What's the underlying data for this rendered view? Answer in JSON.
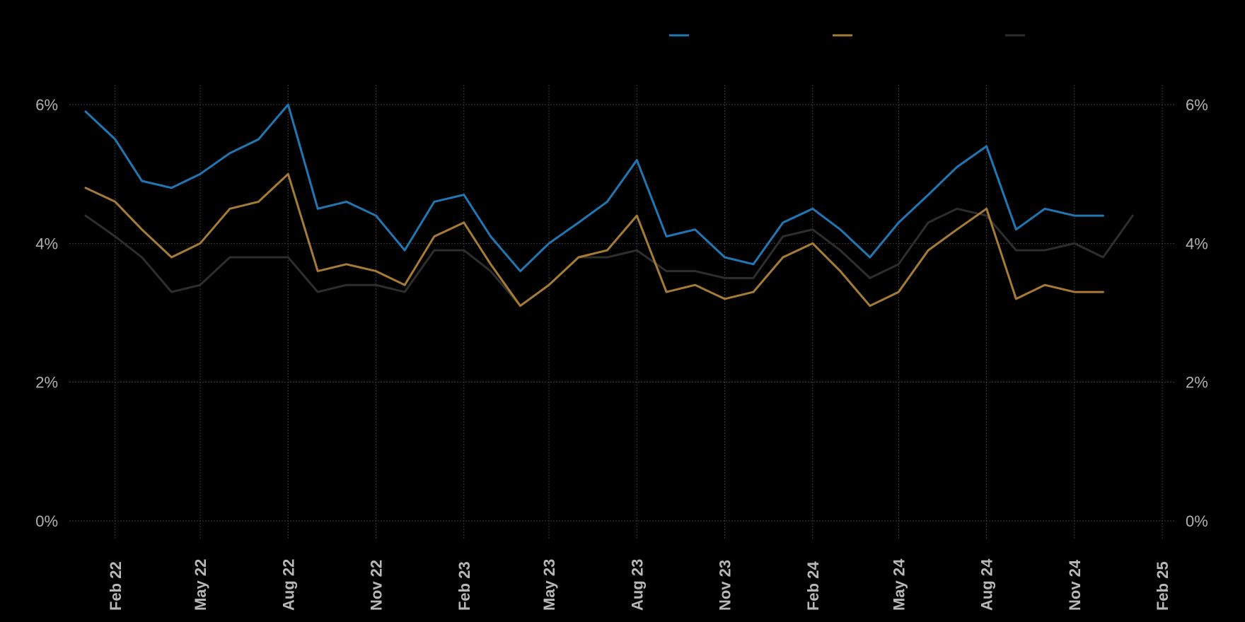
{
  "chart_data": {
    "type": "line",
    "title": "",
    "xlabel": "",
    "ylabel": "",
    "grid": true,
    "legend_position": "top-center",
    "y_unit": "%",
    "ylim": [
      0,
      6.2
    ],
    "y_ticks": [
      0,
      2,
      4,
      6
    ],
    "y_tick_labels": [
      "0%",
      "2%",
      "4%",
      "6%"
    ],
    "x_range": [
      "2021-12-15",
      "2025-02-15"
    ],
    "x_ticks": [
      "2022-02-01",
      "2022-05-01",
      "2022-08-01",
      "2022-11-01",
      "2023-02-01",
      "2023-05-01",
      "2023-08-01",
      "2023-11-01",
      "2024-02-01",
      "2024-05-01",
      "2024-08-01",
      "2024-11-01",
      "2025-02-01"
    ],
    "x_tick_labels": [
      "Feb 22",
      "May 22",
      "Aug 22",
      "Nov 22",
      "Feb 23",
      "May 23",
      "Aug 23",
      "Nov 23",
      "Feb 24",
      "May 24",
      "Aug 24",
      "Nov 24",
      "Feb 25"
    ],
    "series": [
      {
        "color": "#1f77b4",
        "x": [
          "2022-01-01",
          "2022-02-01",
          "2022-03-01",
          "2022-04-01",
          "2022-05-01",
          "2022-06-01",
          "2022-07-01",
          "2022-08-01",
          "2022-09-01",
          "2022-10-01",
          "2022-11-01",
          "2022-12-01",
          "2023-01-01",
          "2023-02-01",
          "2023-03-01",
          "2023-04-01",
          "2023-05-01",
          "2023-06-01",
          "2023-07-01",
          "2023-08-01",
          "2023-09-01",
          "2023-10-01",
          "2023-11-01",
          "2023-12-01",
          "2024-01-01",
          "2024-02-01",
          "2024-03-01",
          "2024-04-01",
          "2024-05-01",
          "2024-06-01",
          "2024-07-01",
          "2024-08-01",
          "2024-09-01",
          "2024-10-01",
          "2024-11-01",
          "2024-12-01"
        ],
        "values": [
          5.9,
          5.5,
          4.9,
          4.8,
          5.0,
          5.3,
          5.5,
          6.0,
          4.5,
          4.6,
          4.4,
          3.9,
          4.6,
          4.7,
          4.1,
          3.6,
          4.0,
          4.3,
          4.6,
          5.2,
          4.1,
          4.2,
          3.8,
          3.7,
          4.3,
          4.5,
          4.2,
          3.8,
          4.3,
          4.7,
          5.1,
          5.4,
          4.2,
          4.5,
          4.4,
          4.4
        ]
      },
      {
        "color": "#a67c35",
        "x": [
          "2022-01-01",
          "2022-02-01",
          "2022-03-01",
          "2022-04-01",
          "2022-05-01",
          "2022-06-01",
          "2022-07-01",
          "2022-08-01",
          "2022-09-01",
          "2022-10-01",
          "2022-11-01",
          "2022-12-01",
          "2023-01-01",
          "2023-02-01",
          "2023-03-01",
          "2023-04-01",
          "2023-05-01",
          "2023-06-01",
          "2023-07-01",
          "2023-08-01",
          "2023-09-01",
          "2023-10-01",
          "2023-11-01",
          "2023-12-01",
          "2024-01-01",
          "2024-02-01",
          "2024-03-01",
          "2024-04-01",
          "2024-05-01",
          "2024-06-01",
          "2024-07-01",
          "2024-08-01",
          "2024-09-01",
          "2024-10-01",
          "2024-11-01",
          "2024-12-01"
        ],
        "values": [
          4.8,
          4.6,
          4.2,
          3.8,
          4.0,
          4.5,
          4.6,
          5.0,
          3.6,
          3.7,
          3.6,
          3.4,
          4.1,
          4.3,
          3.7,
          3.1,
          3.4,
          3.8,
          3.9,
          4.4,
          3.3,
          3.4,
          3.2,
          3.3,
          3.8,
          4.0,
          3.6,
          3.1,
          3.3,
          3.9,
          4.2,
          4.5,
          3.2,
          3.4,
          3.3,
          3.3
        ]
      },
      {
        "color": "#2e2e2e",
        "x": [
          "2022-01-01",
          "2022-02-01",
          "2022-03-01",
          "2022-04-01",
          "2022-05-01",
          "2022-06-01",
          "2022-07-01",
          "2022-08-01",
          "2022-09-01",
          "2022-10-01",
          "2022-11-01",
          "2022-12-01",
          "2023-01-01",
          "2023-02-01",
          "2023-03-01",
          "2023-04-01",
          "2023-05-01",
          "2023-06-01",
          "2023-07-01",
          "2023-08-01",
          "2023-09-01",
          "2023-10-01",
          "2023-11-01",
          "2023-12-01",
          "2024-01-01",
          "2024-02-01",
          "2024-03-01",
          "2024-04-01",
          "2024-05-01",
          "2024-06-01",
          "2024-07-01",
          "2024-08-01",
          "2024-09-01",
          "2024-10-01",
          "2024-11-01",
          "2024-12-01",
          "2025-01-01"
        ],
        "values": [
          4.4,
          4.1,
          3.8,
          3.3,
          3.4,
          3.8,
          3.8,
          3.8,
          3.3,
          3.4,
          3.4,
          3.3,
          3.9,
          3.9,
          3.6,
          3.1,
          3.4,
          3.8,
          3.8,
          3.9,
          3.6,
          3.6,
          3.5,
          3.5,
          4.1,
          4.2,
          3.9,
          3.5,
          3.7,
          4.3,
          4.5,
          4.4,
          3.9,
          3.9,
          4.0,
          3.8,
          4.4
        ]
      }
    ]
  }
}
